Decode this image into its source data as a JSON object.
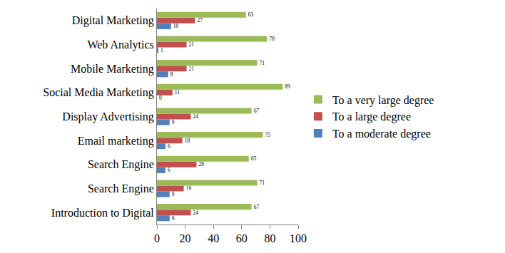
{
  "chart_data": {
    "type": "bar",
    "orientation": "horizontal",
    "categories": [
      "Introduction to Digital",
      "Search Engine",
      "Search Engine",
      "Email marketing",
      "Display Advertising",
      "Social Media Marketing",
      "Mobile Marketing",
      "Web Analytics",
      "Digital Marketing"
    ],
    "series": [
      {
        "name": "To a moderate degree",
        "color": "#4f81bd",
        "values": [
          9,
          9,
          6,
          6,
          9,
          0,
          8,
          1,
          10
        ]
      },
      {
        "name": "To a large degree",
        "color": "#c0504d",
        "values": [
          24,
          19,
          28,
          18,
          24,
          11,
          21,
          21,
          27
        ]
      },
      {
        "name": "To a very large degree",
        "color": "#9bbb59",
        "values": [
          67,
          71,
          65,
          75,
          67,
          89,
          71,
          78,
          63
        ]
      }
    ],
    "xlim": [
      0,
      100
    ],
    "xticks": [
      0,
      20,
      40,
      60,
      80,
      100
    ],
    "grid": false,
    "legend": "right",
    "data_labels": true
  }
}
